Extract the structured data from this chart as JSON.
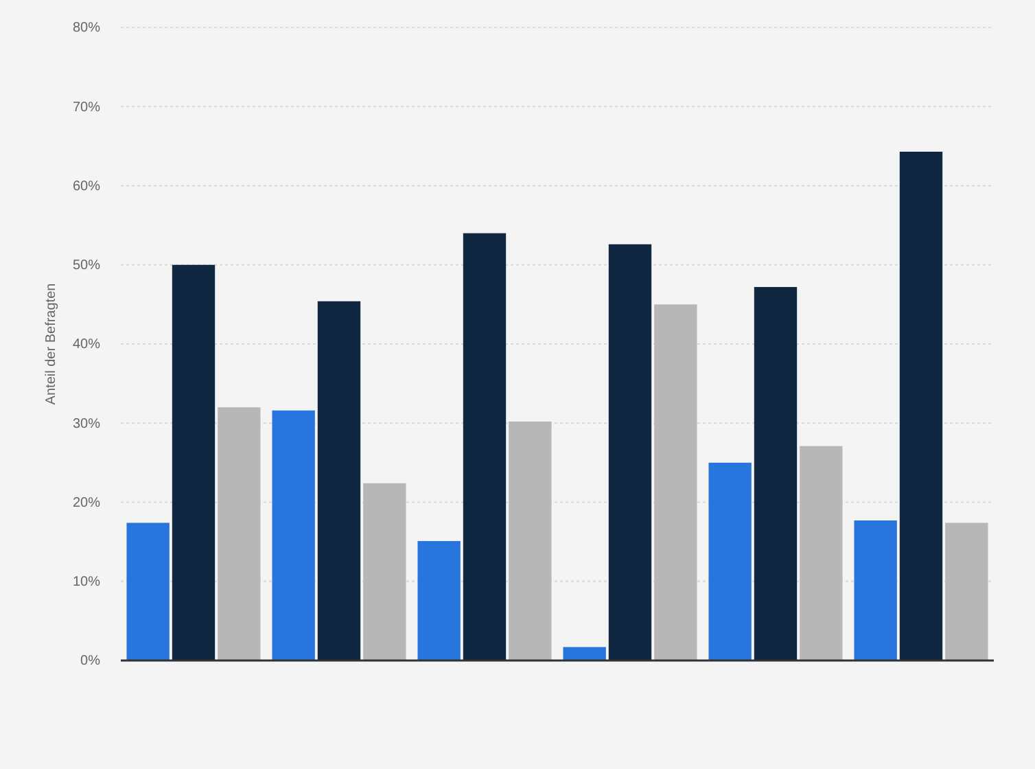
{
  "chart_data": {
    "type": "bar",
    "ylabel": "Anteil der Befragten",
    "categories": [
      null,
      null,
      null,
      null,
      null,
      null
    ],
    "series": [
      {
        "color": "#2876dd",
        "values": [
          17.4,
          31.6,
          15.1,
          1.7,
          25.0,
          17.7
        ]
      },
      {
        "color": "#0f2740",
        "values": [
          50.0,
          45.4,
          54.0,
          52.6,
          47.2,
          64.3
        ]
      },
      {
        "color": "#b7b7b7",
        "values": [
          32.0,
          22.4,
          30.2,
          45.0,
          27.1,
          17.4
        ]
      }
    ],
    "ylim": [
      0,
      80
    ],
    "yticks": [
      {
        "value": 0,
        "label": "0%"
      },
      {
        "value": 10,
        "label": "10%"
      },
      {
        "value": 20,
        "label": "20%"
      },
      {
        "value": 30,
        "label": "30%"
      },
      {
        "value": 40,
        "label": "40%"
      },
      {
        "value": 50,
        "label": "50%"
      },
      {
        "value": 60,
        "label": "60%"
      },
      {
        "value": 70,
        "label": "70%"
      },
      {
        "value": 80,
        "label": "80%"
      }
    ],
    "grid": "y"
  }
}
